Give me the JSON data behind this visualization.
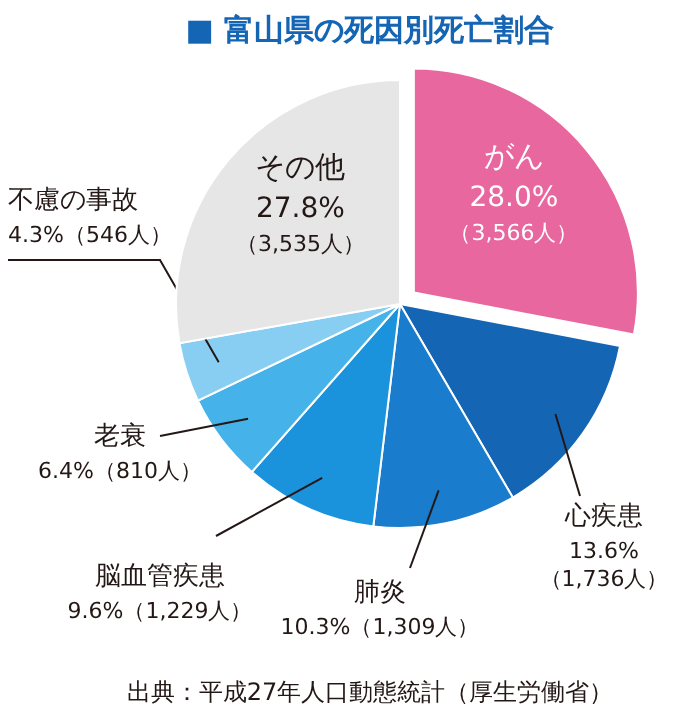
{
  "chart_data": {
    "type": "pie",
    "title": "■ 富山県の死因別死亡割合",
    "categories": [
      "がん",
      "心疾患",
      "肺炎",
      "脳血管疾患",
      "老衰",
      "不慮の事故",
      "その他"
    ],
    "values": [
      28.0,
      13.6,
      10.3,
      9.6,
      6.4,
      4.3,
      27.8
    ],
    "value_labels": [
      "28.0%\n（3,566人）",
      "13.6%\n（1,736人）",
      "10.3%（1,309人）",
      "9.6%（1,229人）",
      "6.4%（810人）",
      "4.3%（546人）",
      "27.8%\n（3,535人）"
    ],
    "colors": [
      "#e8679e",
      "#1565b5",
      "#1a7ccc",
      "#1b93dc",
      "#46b2ea",
      "#88cdf2",
      "#e6e6e6"
    ],
    "annotations": [
      "出典：平成27年人口動態統計（厚生労働省）"
    ]
  }
}
